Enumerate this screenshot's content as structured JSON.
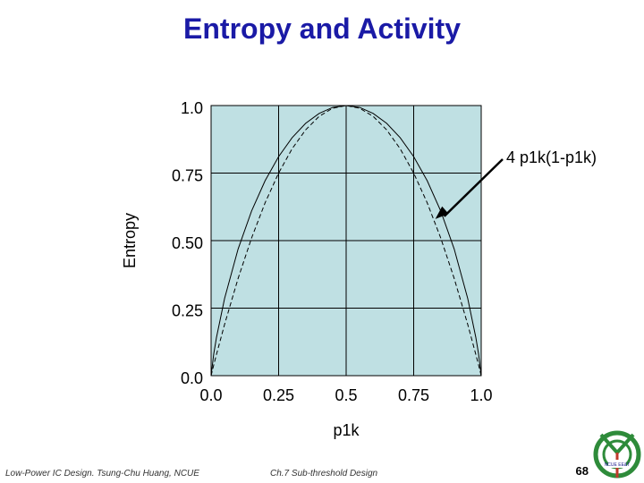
{
  "slide": {
    "title": "Entropy and Activity",
    "footer_left": "Low-Power IC Design. Tsung-Chu Huang, NCUE",
    "footer_center": "Ch.7 Sub-threshold Design",
    "page_number": "68",
    "logo_text": "NCUE EE&T"
  },
  "colors": {
    "title": "#1a1aa6",
    "plot_background": "#bfe0e3",
    "grid": "#000000",
    "curve": "#000000"
  },
  "chart_data": {
    "type": "line",
    "title": "",
    "xlabel": "p1k",
    "ylabel": "Entropy",
    "xlim": [
      0,
      1
    ],
    "ylim": [
      0,
      1
    ],
    "grid": true,
    "x_ticks": [
      0,
      0.25,
      0.5,
      0.75,
      1
    ],
    "x_tick_labels": [
      "0.0",
      "0.25",
      "0.5",
      "0.75",
      "1.0"
    ],
    "y_ticks": [
      0,
      0.25,
      0.5,
      0.75,
      1
    ],
    "y_tick_labels": [
      "0.0",
      "0.25",
      "0.50",
      "0.75",
      "1.0"
    ],
    "x": [
      0,
      0.01,
      0.02,
      0.05,
      0.1,
      0.15,
      0.2,
      0.25,
      0.3,
      0.35,
      0.4,
      0.45,
      0.5,
      0.55,
      0.6,
      0.65,
      0.7,
      0.75,
      0.8,
      0.85,
      0.9,
      0.95,
      0.98,
      0.99,
      1
    ],
    "series": [
      {
        "style": "solid",
        "values": [
          0,
          0.081,
          0.141,
          0.286,
          0.469,
          0.61,
          0.722,
          0.811,
          0.881,
          0.934,
          0.971,
          0.993,
          1,
          0.993,
          0.971,
          0.934,
          0.881,
          0.811,
          0.722,
          0.61,
          0.469,
          0.286,
          0.141,
          0.081,
          0
        ]
      },
      {
        "style": "dashed",
        "values": [
          0,
          0.04,
          0.078,
          0.19,
          0.36,
          0.51,
          0.64,
          0.75,
          0.84,
          0.91,
          0.96,
          0.99,
          1,
          0.99,
          0.96,
          0.91,
          0.84,
          0.75,
          0.64,
          0.51,
          0.36,
          0.19,
          0.078,
          0.04,
          0
        ]
      }
    ],
    "annotations": [
      {
        "text": "4 p1k(1-p1k)",
        "points_to_x": 0.83,
        "points_to_y": 0.58
      }
    ]
  }
}
